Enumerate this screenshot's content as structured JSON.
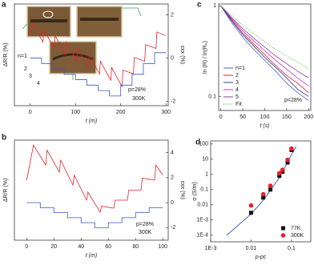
{
  "chart_data": [
    {
      "type": "line",
      "panel": "a",
      "xlabel": "t (m)",
      "ylabel": "ΔR/R (%)",
      "y2label": "εxx (%)",
      "xlim": [
        -35,
        305
      ],
      "xticks": [
        0,
        100,
        200,
        300
      ],
      "ylim": [
        20,
        100
      ],
      "y2lim": [
        -2.2,
        2.5
      ],
      "y2ticks": [
        -2,
        0,
        2
      ],
      "annotations": [
        "n=1",
        "2",
        "3",
        "4",
        "p=28%",
        "300K"
      ],
      "series": [
        {
          "color": "#e8202a",
          "x": [
            0,
            5,
            28,
            30,
            53,
            55,
            78,
            80,
            103,
            105,
            128,
            130,
            153,
            155,
            178,
            180,
            203,
            205,
            228,
            230,
            253,
            255,
            278,
            280,
            300
          ],
          "values": [
            75,
            85,
            70,
            80,
            65,
            75,
            60,
            70,
            55,
            65,
            50,
            60,
            45,
            55,
            40,
            50,
            35,
            48,
            45,
            58,
            55,
            68,
            65,
            78,
            75
          ]
        },
        {
          "color": "#3a56c8",
          "axis": "y2",
          "x": [
            0,
            25,
            25,
            50,
            50,
            75,
            75,
            100,
            100,
            125,
            125,
            150,
            150,
            175,
            175,
            200,
            200,
            225,
            225,
            250,
            250,
            275,
            275,
            300
          ],
          "values": [
            0,
            0,
            -0.25,
            -0.25,
            -0.5,
            -0.5,
            -0.75,
            -0.75,
            -1,
            -1,
            -1.25,
            -1.25,
            -1.5,
            -1.5,
            -1.75,
            -1.75,
            -1.25,
            -1.25,
            -0.75,
            -0.75,
            -0.25,
            -0.25,
            0.25,
            0.25
          ]
        }
      ]
    },
    {
      "type": "line",
      "panel": "b",
      "xlabel": "t (m)",
      "ylabel": "ΔR/R (%)",
      "y2label": "εxx (%)",
      "xlim": [
        -9,
        104
      ],
      "xticks": [
        0,
        20,
        40,
        60,
        80,
        100
      ],
      "ylim": [
        0,
        100
      ],
      "y2lim": [
        -3,
        5
      ],
      "y2ticks": [
        -2,
        0,
        2,
        4
      ],
      "annotations": [
        "p=28%",
        "300K"
      ],
      "series": [
        {
          "color": "#e8202a",
          "x": [
            0,
            5,
            14,
            15,
            24,
            25,
            34,
            35,
            44,
            45,
            54,
            55,
            64,
            65,
            74,
            75,
            84,
            85,
            94,
            95,
            100
          ],
          "values": [
            60,
            95,
            75,
            90,
            68,
            80,
            55,
            65,
            40,
            48,
            28,
            34,
            32,
            40,
            40,
            50,
            50,
            62,
            60,
            75,
            65
          ]
        },
        {
          "color": "#3a56c8",
          "axis": "y2",
          "x": [
            0,
            10,
            10,
            20,
            20,
            30,
            30,
            40,
            40,
            50,
            50,
            60,
            60,
            70,
            70,
            80,
            80,
            90,
            90,
            100
          ],
          "values": [
            0,
            0,
            -0.4,
            -0.4,
            -0.8,
            -0.8,
            -1.2,
            -1.2,
            -1.6,
            -1.6,
            -2,
            -2,
            -1.6,
            -1.6,
            -1.2,
            -1.2,
            -0.8,
            -0.8,
            -0.4,
            -0.4
          ]
        }
      ]
    },
    {
      "type": "line",
      "panel": "c",
      "xlabel": "t (s)",
      "ylabel": "ln (R) / ln(R₀)",
      "yscale": "log",
      "legend": "lower left",
      "xlim": [
        -5,
        205
      ],
      "xticks": [
        0,
        50,
        100,
        150,
        200
      ],
      "ylim": [
        0.07,
        1.05
      ],
      "yticks": [
        0.1,
        1
      ],
      "annotations": [
        "p=28%"
      ],
      "x": [
        0,
        25,
        50,
        75,
        100,
        125,
        150,
        175,
        200
      ],
      "series": [
        {
          "name": "n=1",
          "color": "#4a5bd4",
          "values": [
            1,
            0.65,
            0.45,
            0.33,
            0.25,
            0.19,
            0.14,
            0.11,
            0.09
          ]
        },
        {
          "name": "2",
          "color": "#e0202a",
          "values": [
            1,
            0.7,
            0.5,
            0.38,
            0.29,
            0.22,
            0.17,
            0.14,
            0.11
          ]
        },
        {
          "name": "3",
          "color": "#2a3a9a",
          "values": [
            1,
            0.68,
            0.48,
            0.36,
            0.27,
            0.21,
            0.16,
            0.12,
            0.1
          ]
        },
        {
          "name": "4",
          "color": "#d030c0",
          "values": [
            1,
            0.72,
            0.53,
            0.41,
            0.32,
            0.25,
            0.2,
            0.16,
            0.13
          ]
        },
        {
          "name": "5",
          "color": "#8040a0",
          "values": [
            1,
            0.74,
            0.56,
            0.44,
            0.35,
            0.28,
            0.23,
            0.19,
            0.16
          ]
        },
        {
          "name": "Fit",
          "color": "#30b030",
          "style": "dotted",
          "values": [
            1,
            0.78,
            0.61,
            0.49,
            0.4,
            0.33,
            0.28,
            0.24,
            0.2
          ]
        }
      ]
    },
    {
      "type": "scatter",
      "panel": "d",
      "xlabel": "p-pc",
      "ylabel": "σ (S/m)",
      "xscale": "log",
      "yscale": "log",
      "legend": "lower right",
      "xlim": [
        0.001,
        0.3
      ],
      "xticks": [
        {
          "value": 0.001,
          "label": "1E-3"
        },
        0.01,
        0.1
      ],
      "ylim": [
        3.7e-05,
        160
      ],
      "yticks": [
        {
          "value": 0.0001,
          "label": "1E-4"
        },
        {
          "value": 0.001,
          "label": "1E-3"
        },
        0.01,
        0.1,
        1,
        10,
        100
      ],
      "series": [
        {
          "color": "#1f3fa8",
          "style": "line",
          "x": [
            0.0025,
            0.005,
            0.01,
            0.02,
            0.05,
            0.1,
            0.13
          ],
          "values": [
            0.0001,
            0.0005,
            0.0025,
            0.02,
            0.6,
            20,
            70
          ]
        },
        {
          "name": "77K",
          "color": "#111111",
          "marker": "square",
          "x": [
            0.01,
            0.02,
            0.03,
            0.05,
            0.06,
            0.08,
            0.1
          ],
          "values": [
            0.003,
            0.03,
            0.1,
            0.8,
            1.5,
            6,
            40
          ]
        },
        {
          "name": "300K",
          "color": "#e8202a",
          "marker": "circle",
          "x": [
            0.01,
            0.02,
            0.03,
            0.05,
            0.06,
            0.08,
            0.1
          ],
          "values": [
            0.009,
            0.05,
            0.18,
            1.2,
            2,
            9,
            50
          ]
        }
      ]
    }
  ]
}
